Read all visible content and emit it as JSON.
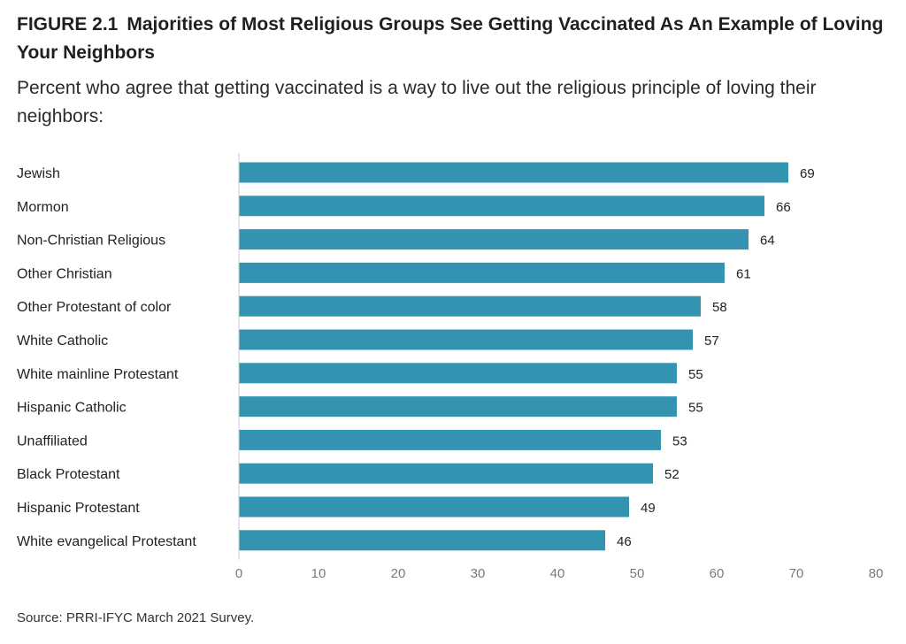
{
  "figure": {
    "number": "FIGURE 2.1",
    "title": "Majorities of Most Religious Groups See Getting Vaccinated As An Example of Loving Your Neighbors",
    "subtitle": "Percent who agree that getting vaccinated is a way to live out the religious principle of loving their neighbors:",
    "source": "Source: PRRI-IFYC March 2021 Survey."
  },
  "colors": {
    "bar": "#3493b0",
    "axis_line": "#cccccc",
    "text": "#222222",
    "tick_text": "#7a7a7a"
  },
  "chart_data": {
    "type": "bar",
    "orientation": "horizontal",
    "title": "Majorities of Most Religious Groups See Getting Vaccinated As An Example of Loving Your Neighbors",
    "subtitle": "Percent who agree that getting vaccinated is a way to live out the religious principle of loving their neighbors:",
    "xlabel": "",
    "ylabel": "",
    "categories": [
      "Jewish",
      "Mormon",
      "Non-Christian Religious",
      "Other Christian",
      "Other Protestant of color",
      "White Catholic",
      "White mainline Protestant",
      "Hispanic Catholic",
      "Unaffiliated",
      "Black Protestant",
      "Hispanic Protestant",
      "White evangelical Protestant"
    ],
    "values": [
      69,
      66,
      64,
      61,
      58,
      57,
      55,
      55,
      53,
      52,
      49,
      46
    ],
    "xlim": [
      0,
      80
    ],
    "xticks": [
      0,
      10,
      20,
      30,
      40,
      50,
      60,
      70,
      80
    ],
    "grid": false,
    "data_labels": true
  }
}
